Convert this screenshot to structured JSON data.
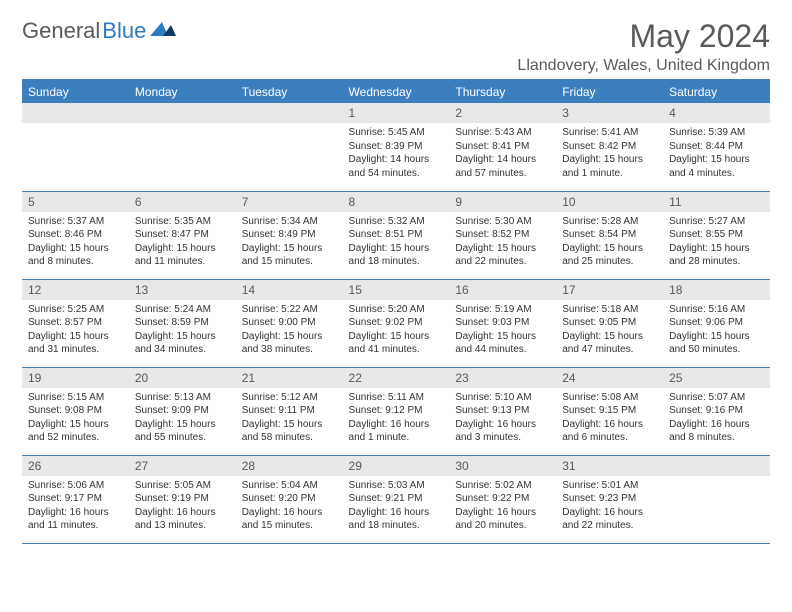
{
  "logo": {
    "text1": "General",
    "text2": "Blue"
  },
  "header": {
    "month_title": "May 2024",
    "location": "Llandovery, Wales, United Kingdom"
  },
  "colors": {
    "header_bar": "#3b7fbf",
    "daynum_bg": "#e8e8e8",
    "text_gray": "#5a5a5a",
    "logo_blue": "#2e7cc0"
  },
  "day_names": [
    "Sunday",
    "Monday",
    "Tuesday",
    "Wednesday",
    "Thursday",
    "Friday",
    "Saturday"
  ],
  "weeks": [
    [
      {
        "n": "",
        "sr": "",
        "ss": "",
        "dl": ""
      },
      {
        "n": "",
        "sr": "",
        "ss": "",
        "dl": ""
      },
      {
        "n": "",
        "sr": "",
        "ss": "",
        "dl": ""
      },
      {
        "n": "1",
        "sr": "Sunrise: 5:45 AM",
        "ss": "Sunset: 8:39 PM",
        "dl": "Daylight: 14 hours and 54 minutes."
      },
      {
        "n": "2",
        "sr": "Sunrise: 5:43 AM",
        "ss": "Sunset: 8:41 PM",
        "dl": "Daylight: 14 hours and 57 minutes."
      },
      {
        "n": "3",
        "sr": "Sunrise: 5:41 AM",
        "ss": "Sunset: 8:42 PM",
        "dl": "Daylight: 15 hours and 1 minute."
      },
      {
        "n": "4",
        "sr": "Sunrise: 5:39 AM",
        "ss": "Sunset: 8:44 PM",
        "dl": "Daylight: 15 hours and 4 minutes."
      }
    ],
    [
      {
        "n": "5",
        "sr": "Sunrise: 5:37 AM",
        "ss": "Sunset: 8:46 PM",
        "dl": "Daylight: 15 hours and 8 minutes."
      },
      {
        "n": "6",
        "sr": "Sunrise: 5:35 AM",
        "ss": "Sunset: 8:47 PM",
        "dl": "Daylight: 15 hours and 11 minutes."
      },
      {
        "n": "7",
        "sr": "Sunrise: 5:34 AM",
        "ss": "Sunset: 8:49 PM",
        "dl": "Daylight: 15 hours and 15 minutes."
      },
      {
        "n": "8",
        "sr": "Sunrise: 5:32 AM",
        "ss": "Sunset: 8:51 PM",
        "dl": "Daylight: 15 hours and 18 minutes."
      },
      {
        "n": "9",
        "sr": "Sunrise: 5:30 AM",
        "ss": "Sunset: 8:52 PM",
        "dl": "Daylight: 15 hours and 22 minutes."
      },
      {
        "n": "10",
        "sr": "Sunrise: 5:28 AM",
        "ss": "Sunset: 8:54 PM",
        "dl": "Daylight: 15 hours and 25 minutes."
      },
      {
        "n": "11",
        "sr": "Sunrise: 5:27 AM",
        "ss": "Sunset: 8:55 PM",
        "dl": "Daylight: 15 hours and 28 minutes."
      }
    ],
    [
      {
        "n": "12",
        "sr": "Sunrise: 5:25 AM",
        "ss": "Sunset: 8:57 PM",
        "dl": "Daylight: 15 hours and 31 minutes."
      },
      {
        "n": "13",
        "sr": "Sunrise: 5:24 AM",
        "ss": "Sunset: 8:59 PM",
        "dl": "Daylight: 15 hours and 34 minutes."
      },
      {
        "n": "14",
        "sr": "Sunrise: 5:22 AM",
        "ss": "Sunset: 9:00 PM",
        "dl": "Daylight: 15 hours and 38 minutes."
      },
      {
        "n": "15",
        "sr": "Sunrise: 5:20 AM",
        "ss": "Sunset: 9:02 PM",
        "dl": "Daylight: 15 hours and 41 minutes."
      },
      {
        "n": "16",
        "sr": "Sunrise: 5:19 AM",
        "ss": "Sunset: 9:03 PM",
        "dl": "Daylight: 15 hours and 44 minutes."
      },
      {
        "n": "17",
        "sr": "Sunrise: 5:18 AM",
        "ss": "Sunset: 9:05 PM",
        "dl": "Daylight: 15 hours and 47 minutes."
      },
      {
        "n": "18",
        "sr": "Sunrise: 5:16 AM",
        "ss": "Sunset: 9:06 PM",
        "dl": "Daylight: 15 hours and 50 minutes."
      }
    ],
    [
      {
        "n": "19",
        "sr": "Sunrise: 5:15 AM",
        "ss": "Sunset: 9:08 PM",
        "dl": "Daylight: 15 hours and 52 minutes."
      },
      {
        "n": "20",
        "sr": "Sunrise: 5:13 AM",
        "ss": "Sunset: 9:09 PM",
        "dl": "Daylight: 15 hours and 55 minutes."
      },
      {
        "n": "21",
        "sr": "Sunrise: 5:12 AM",
        "ss": "Sunset: 9:11 PM",
        "dl": "Daylight: 15 hours and 58 minutes."
      },
      {
        "n": "22",
        "sr": "Sunrise: 5:11 AM",
        "ss": "Sunset: 9:12 PM",
        "dl": "Daylight: 16 hours and 1 minute."
      },
      {
        "n": "23",
        "sr": "Sunrise: 5:10 AM",
        "ss": "Sunset: 9:13 PM",
        "dl": "Daylight: 16 hours and 3 minutes."
      },
      {
        "n": "24",
        "sr": "Sunrise: 5:08 AM",
        "ss": "Sunset: 9:15 PM",
        "dl": "Daylight: 16 hours and 6 minutes."
      },
      {
        "n": "25",
        "sr": "Sunrise: 5:07 AM",
        "ss": "Sunset: 9:16 PM",
        "dl": "Daylight: 16 hours and 8 minutes."
      }
    ],
    [
      {
        "n": "26",
        "sr": "Sunrise: 5:06 AM",
        "ss": "Sunset: 9:17 PM",
        "dl": "Daylight: 16 hours and 11 minutes."
      },
      {
        "n": "27",
        "sr": "Sunrise: 5:05 AM",
        "ss": "Sunset: 9:19 PM",
        "dl": "Daylight: 16 hours and 13 minutes."
      },
      {
        "n": "28",
        "sr": "Sunrise: 5:04 AM",
        "ss": "Sunset: 9:20 PM",
        "dl": "Daylight: 16 hours and 15 minutes."
      },
      {
        "n": "29",
        "sr": "Sunrise: 5:03 AM",
        "ss": "Sunset: 9:21 PM",
        "dl": "Daylight: 16 hours and 18 minutes."
      },
      {
        "n": "30",
        "sr": "Sunrise: 5:02 AM",
        "ss": "Sunset: 9:22 PM",
        "dl": "Daylight: 16 hours and 20 minutes."
      },
      {
        "n": "31",
        "sr": "Sunrise: 5:01 AM",
        "ss": "Sunset: 9:23 PM",
        "dl": "Daylight: 16 hours and 22 minutes."
      },
      {
        "n": "",
        "sr": "",
        "ss": "",
        "dl": ""
      }
    ]
  ]
}
